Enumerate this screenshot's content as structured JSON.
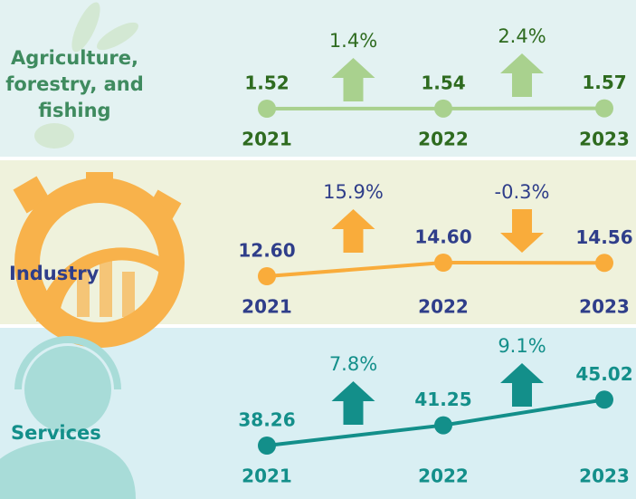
{
  "chart_data": [
    {
      "type": "line",
      "title": "Agriculture, forestry, and fishing",
      "categories": [
        "2021",
        "2022",
        "2023"
      ],
      "values": [
        1.52,
        1.54,
        1.57
      ],
      "value_labels": [
        "1.52",
        "1.54",
        "1.57"
      ],
      "changes": [
        {
          "value": 1.4,
          "label": "1.4%"
        },
        {
          "value": 2.4,
          "label": "2.4%"
        }
      ],
      "color": "#a9d18e",
      "label_color": "#2e6b1f"
    },
    {
      "type": "line",
      "title": "Industry",
      "categories": [
        "2021",
        "2022",
        "2023"
      ],
      "values": [
        12.6,
        14.6,
        14.56
      ],
      "value_labels": [
        "12.60",
        "14.60",
        "14.56"
      ],
      "changes": [
        {
          "value": 15.9,
          "label": "15.9%"
        },
        {
          "value": -0.3,
          "label": "-0.3%"
        }
      ],
      "color": "#f9ac3b",
      "label_color": "#2f3e8a"
    },
    {
      "type": "line",
      "title": "Services",
      "categories": [
        "2021",
        "2022",
        "2023"
      ],
      "values": [
        38.26,
        41.25,
        45.02
      ],
      "value_labels": [
        "38.26",
        "41.25",
        "45.02"
      ],
      "changes": [
        {
          "value": 7.8,
          "label": "7.8%"
        },
        {
          "value": 9.1,
          "label": "9.1%"
        }
      ],
      "color": "#138f8a",
      "label_color": "#138f8a"
    }
  ]
}
